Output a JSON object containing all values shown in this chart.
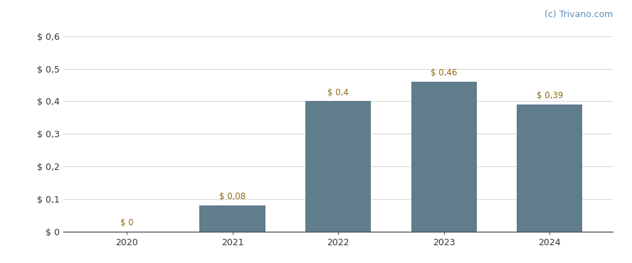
{
  "categories": [
    "2020",
    "2021",
    "2022",
    "2023",
    "2024"
  ],
  "values": [
    0.0,
    0.08,
    0.4,
    0.46,
    0.39
  ],
  "bar_color": "#607d8b",
  "bar_labels": [
    "$ 0",
    "$ 0,08",
    "$ 0,4",
    "$ 0,46",
    "$ 0,39"
  ],
  "ylim": [
    0,
    0.63
  ],
  "yticks": [
    0.0,
    0.1,
    0.2,
    0.3,
    0.4,
    0.5,
    0.6
  ],
  "ytick_labels": [
    "$ 0",
    "$ 0,1",
    "$ 0,2",
    "$ 0,3",
    "$ 0,4",
    "$ 0,5",
    "$ 0,6"
  ],
  "watermark": "(c) Trivano.com",
  "background_color": "#ffffff",
  "grid_color": "#d5d5d5",
  "bar_width": 0.62,
  "label_fontsize": 8.5,
  "tick_fontsize": 9,
  "watermark_fontsize": 9,
  "label_color": "#8B6914",
  "tick_color": "#333333",
  "watermark_color": "#5b8db8"
}
